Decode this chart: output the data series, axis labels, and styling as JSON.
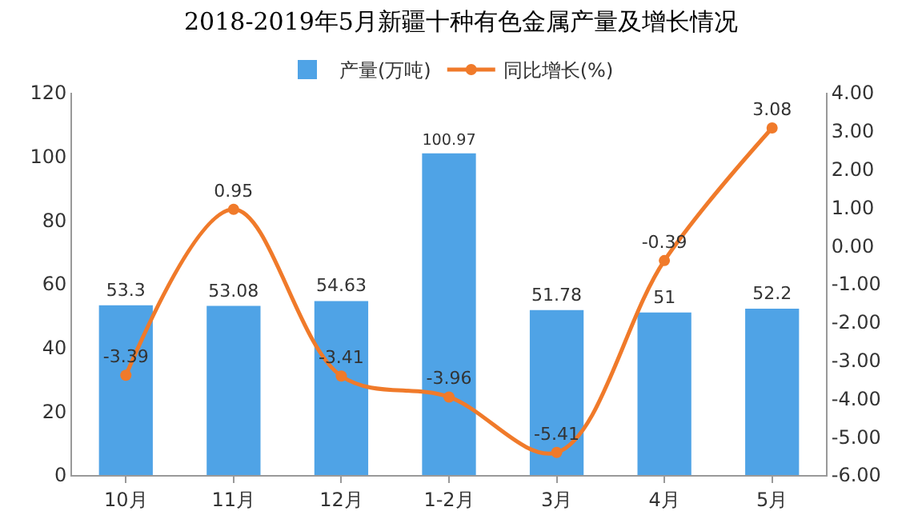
{
  "chart_data": {
    "type": "bar",
    "title": "2018-2019年5月新疆十种有色金属产量及增长情况",
    "categories": [
      "10月",
      "11月",
      "12月",
      "1-2月",
      "3月",
      "4月",
      "5月"
    ],
    "series": [
      {
        "name": "产量(万吨)",
        "color": "#4fa3e6",
        "values": [
          53.3,
          53.08,
          54.63,
          100.97,
          51.78,
          51,
          52.2
        ]
      },
      {
        "name": "同比增长(%)",
        "type": "line",
        "axis": "y2",
        "color": "#f07a2a",
        "marker": "circle",
        "line_style": "solid",
        "values": [
          -3.39,
          0.95,
          -3.41,
          -3.96,
          -5.41,
          -0.39,
          3.08
        ]
      }
    ],
    "ylim": [
      0,
      120
    ],
    "yticks": [
      0,
      20,
      40,
      60,
      80,
      100,
      120
    ],
    "y2lim": [
      -6,
      4
    ],
    "y2ticks": [
      {
        "value": -6,
        "label": "-6.00"
      },
      {
        "value": -5,
        "label": "-5.00"
      },
      {
        "value": -4,
        "label": "-4.00"
      },
      {
        "value": -3,
        "label": "-3.00"
      },
      {
        "value": -2,
        "label": "-2.00"
      },
      {
        "value": -1,
        "label": "-1.00"
      },
      {
        "value": 0,
        "label": "0.00"
      },
      {
        "value": 1,
        "label": "1.00"
      },
      {
        "value": 2,
        "label": "2.00"
      },
      {
        "value": 3,
        "label": "3.00"
      },
      {
        "value": 4,
        "label": "4.00"
      }
    ],
    "data_labels": true,
    "legend": "top",
    "grid": false
  }
}
